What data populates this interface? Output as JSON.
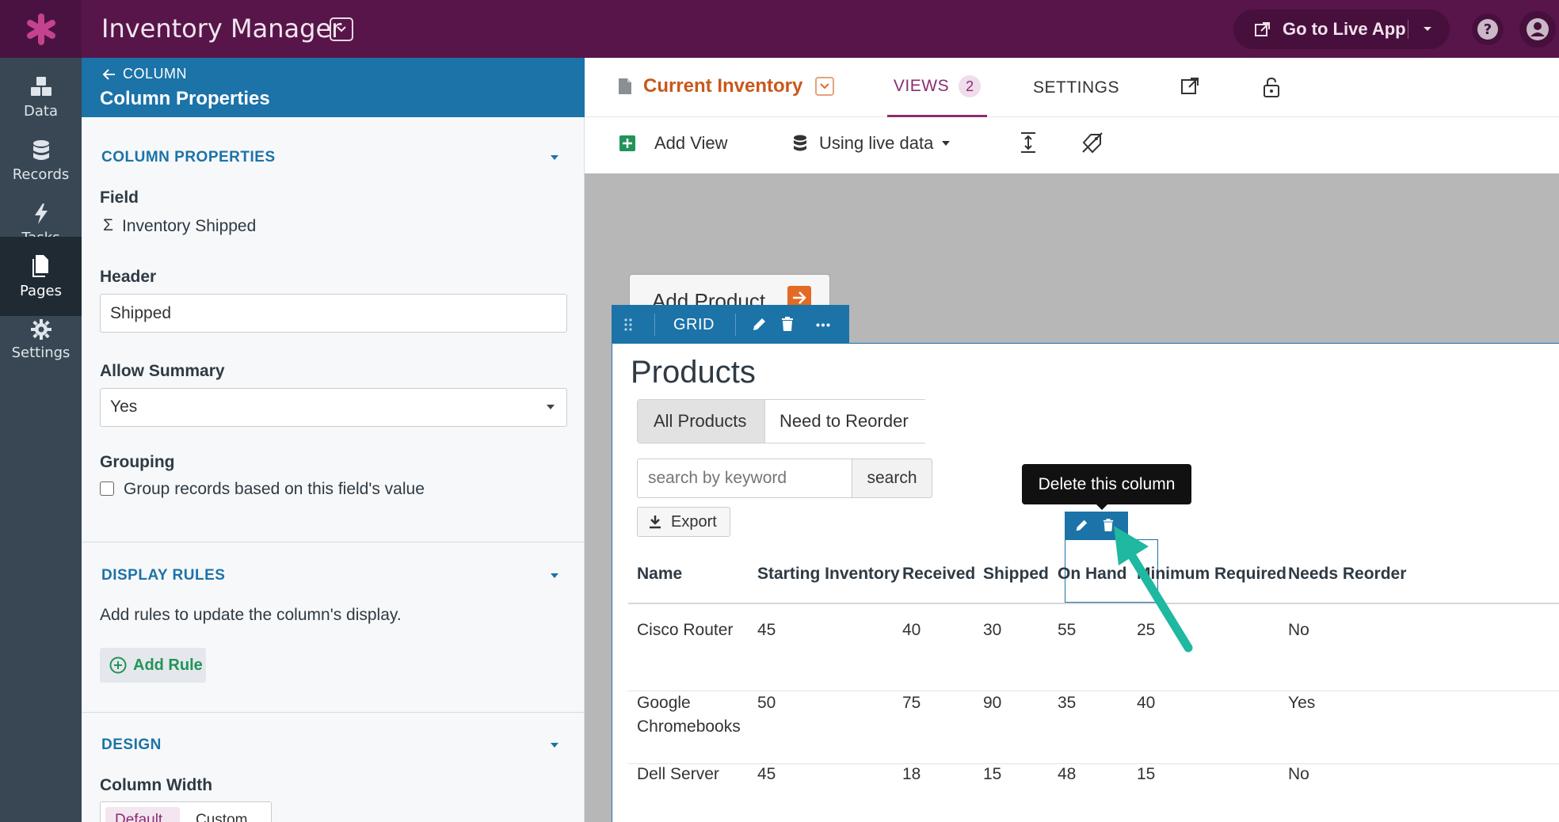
{
  "topbar": {
    "app_title": "Inventory Manager",
    "live_app_label": "Go to Live App"
  },
  "leftnav": {
    "items": [
      {
        "label": "Data",
        "icon": "cubes-icon"
      },
      {
        "label": "Records",
        "icon": "database-icon"
      },
      {
        "label": "Tasks",
        "icon": "lightning-icon"
      },
      {
        "label": "Pages",
        "icon": "pages-icon",
        "active": true
      },
      {
        "label": "Settings",
        "icon": "gear-icon"
      }
    ]
  },
  "props": {
    "back_label": "COLUMN",
    "title": "Column Properties",
    "section_column": "COLUMN PROPERTIES",
    "field_label": "Field",
    "field_symbol": "Σ",
    "field_value": "Inventory Shipped",
    "header_label": "Header",
    "header_value": "Shipped",
    "allow_summary_label": "Allow Summary",
    "allow_summary_value": "Yes",
    "grouping_label": "Grouping",
    "grouping_checkbox": "Group records based on this field's value",
    "section_display": "DISPLAY RULES",
    "display_desc": "Add rules to update the column's display.",
    "add_rule_label": "Add Rule",
    "section_design": "DESIGN",
    "column_width_label": "Column Width",
    "width_option_default": "Default",
    "width_option_custom": "Custom"
  },
  "builder": {
    "page_name": "Current Inventory",
    "tab_views": "VIEWS",
    "views_count": "2",
    "tab_settings": "SETTINGS",
    "add_view": "Add View",
    "live_data": "Using live data"
  },
  "canvas": {
    "add_product": "Add Product",
    "grid_label": "GRID",
    "title": "Products",
    "filter_all": "All Products",
    "filter_reorder": "Need to Reorder",
    "search_placeholder": "search by keyword",
    "search_btn": "search",
    "export": "Export",
    "tooltip": "Delete this column"
  },
  "table": {
    "columns": [
      "Name",
      "Starting Inventory",
      "Received",
      "Shipped",
      "On Hand",
      "Minimum Required",
      "Needs Reorder"
    ],
    "rows": [
      {
        "name": "Cisco Router",
        "name2": "",
        "start": "45",
        "received": "40",
        "shipped": "30",
        "onhand": "55",
        "min": "25",
        "reorder": "No"
      },
      {
        "name": "Google",
        "name2": "Chromebooks",
        "start": "50",
        "received": "75",
        "shipped": "90",
        "onhand": "35",
        "min": "40",
        "reorder": "Yes"
      },
      {
        "name": "Dell Server",
        "name2": "",
        "start": "45",
        "received": "18",
        "shipped": "15",
        "onhand": "48",
        "min": "15",
        "reorder": "No"
      }
    ]
  },
  "colors": {
    "topbar": "#58154a",
    "nav": "#384753",
    "accent_blue": "#1b73a8",
    "accent_purple": "#8a2d72",
    "orange": "#c8581c",
    "annotation": "#1fb8a0"
  }
}
